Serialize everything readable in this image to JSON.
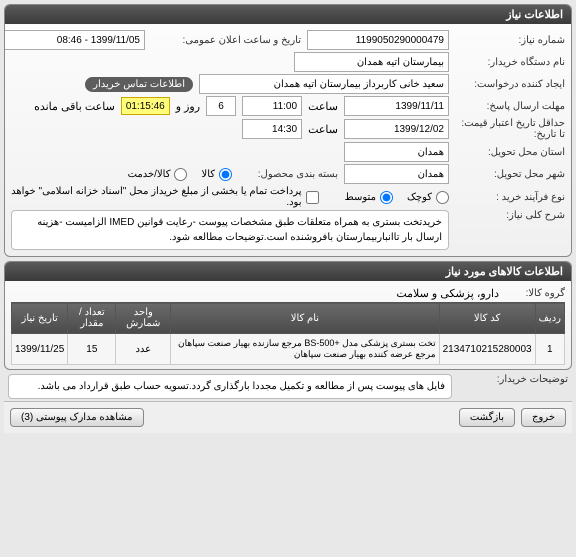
{
  "header": {
    "title": "اطلاعات نیاز"
  },
  "info": {
    "req_no_label": "شماره نیاز:",
    "req_no": "1199050290000479",
    "announce_label": "تاریخ و ساعت اعلان عمومی:",
    "announce_value": "1399/11/05 - 08:46",
    "buyer_name_label": "نام دستگاه خریدار:",
    "buyer_name": "بیمارستان آتیه همدان",
    "creator_label": "ایجاد کننده درخواست:",
    "creator": "سعید خانی کاربرداز بیمارستان آتیه همدان",
    "contact_btn": "اطلاعات تماس خریدار",
    "reply_deadline_label": "مهلت ارسال پاسخ:",
    "reply_to_label": "تا تاریخ:",
    "reply_date": "1399/11/11",
    "reply_time_lbl": "ساعت",
    "reply_time": "11:00",
    "days": "6",
    "days_lbl": "روز و",
    "remaining_time": "01:15:46",
    "remaining_lbl": "ساعت باقی مانده",
    "valid_label": "حداقل تاریخ اعتبار قیمت: تا تاریخ:",
    "valid_date": "1399/12/02",
    "valid_time_lbl": "ساعت",
    "valid_time": "14:30",
    "delivery_prov_label": "استان محل تحویل:",
    "delivery_prov": "همدان",
    "delivery_city_label": "شهر محل تحویل:",
    "delivery_city": "همدان",
    "pkg_label": "بسته بندی محصول:",
    "kala": "کالا",
    "khadamat": "کالا/خدمت",
    "process_label": "نوع فرآیند خرید :",
    "small": "کوچک",
    "medium": "متوسط",
    "pay_note": "پرداخت تمام یا بخشی از مبلغ خریداز محل \"اسناد خزانه اسلامی\" خواهد بود.",
    "summary_label": "شرح کلی نیاز:",
    "summary": "خریدتخت بستری به همراه متعلقات طبق مشخصات پیوست -رعایت قوانین IMED الزامیست -هزینه ارسال بار تاانباربیمارستان بافروشنده است.توضیحات مطالعه شود."
  },
  "goods": {
    "header": "اطلاعات کالاهای مورد نیاز",
    "group_label": "گروه کالا:",
    "group": "دارو، پزشکی و سلامت",
    "columns": [
      "ردیف",
      "کد کالا",
      "نام کالا",
      "واحد شمارش",
      "تعداد / مقدار",
      "تاریخ نیاز"
    ],
    "rows": [
      [
        "1",
        "2134710215280003",
        "تخت بستری پزشکی مدل +BS-500 مرجع سازنده بهیار صنعت سپاهان مرجع عرضه کننده بهیار صنعت سپاهان",
        "عدد",
        "15",
        "1399/11/25"
      ]
    ]
  },
  "buyer_notes": {
    "label": "توضیحات خریدار:",
    "text": "فایل های پیوست پس از مطالعه و تکمیل مجددا بارگذاری گردد.تسویه حساب طبق قرارداد می باشد."
  },
  "footer": {
    "attachments": "مشاهده مدارک پیوستی (3)",
    "back": "بازگشت",
    "exit": "خروج"
  }
}
